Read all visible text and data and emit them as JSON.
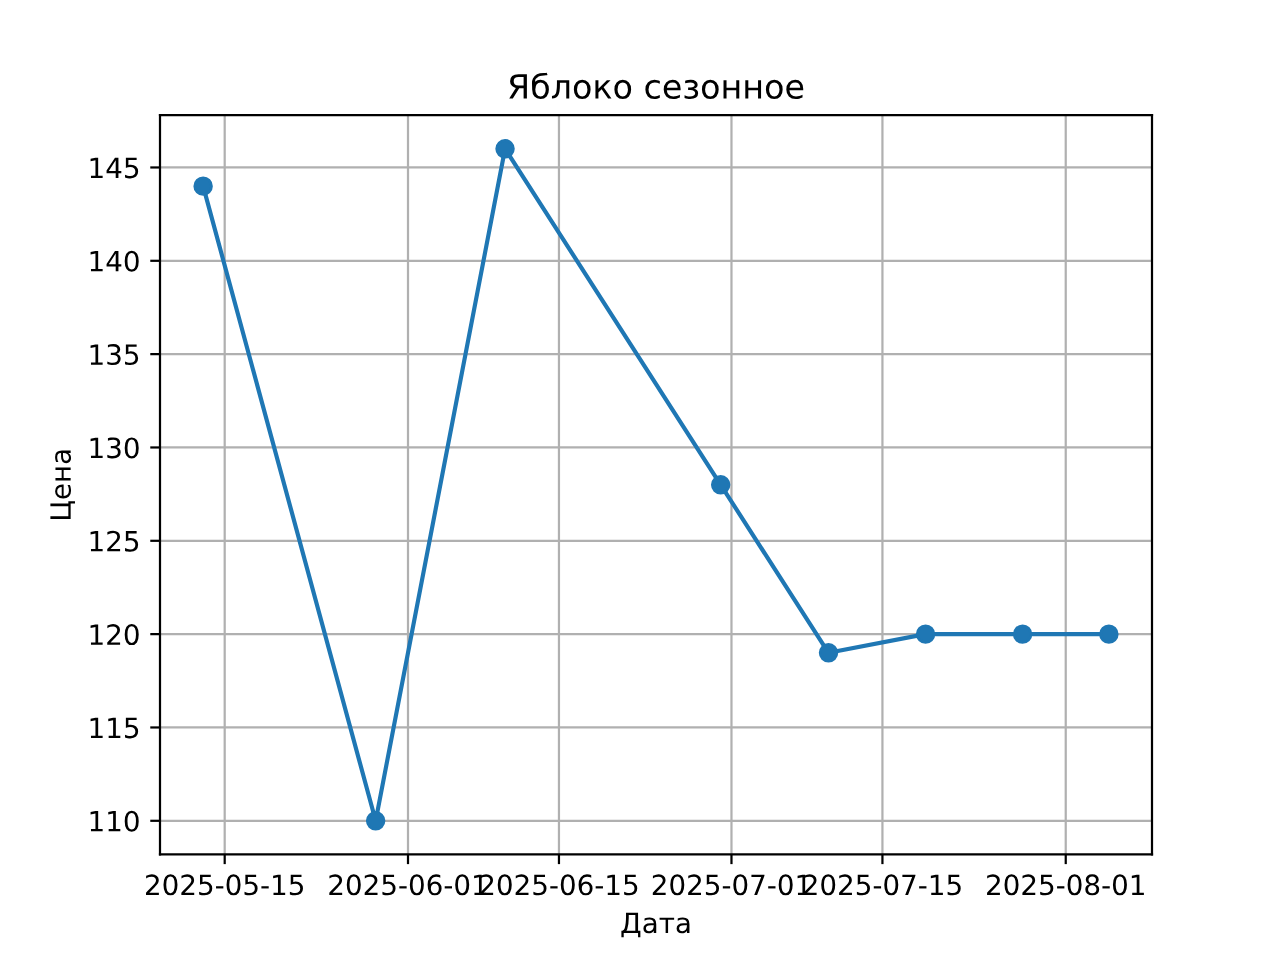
{
  "chart_data": {
    "type": "line",
    "title": "Яблоко сезонное",
    "xlabel": "Дата",
    "ylabel": "Цена",
    "x": [
      "2025-05-13",
      "2025-05-29",
      "2025-06-10",
      "2025-06-30",
      "2025-07-10",
      "2025-07-19",
      "2025-07-28",
      "2025-08-05"
    ],
    "series": [
      {
        "color": "#1f77b4",
        "values": [
          144,
          110,
          146,
          128,
          119,
          120,
          120,
          120
        ]
      }
    ],
    "xlim": [
      "2025-05-09",
      "2025-08-09"
    ],
    "xticks": [
      "2025-05-15",
      "2025-06-01",
      "2025-06-15",
      "2025-07-01",
      "2025-07-15",
      "2025-08-01"
    ],
    "ylim": [
      108.2,
      147.8
    ],
    "yticks": [
      110,
      115,
      120,
      125,
      130,
      135,
      140,
      145
    ],
    "grid": true,
    "marker": "circle",
    "line_style": "solid"
  }
}
